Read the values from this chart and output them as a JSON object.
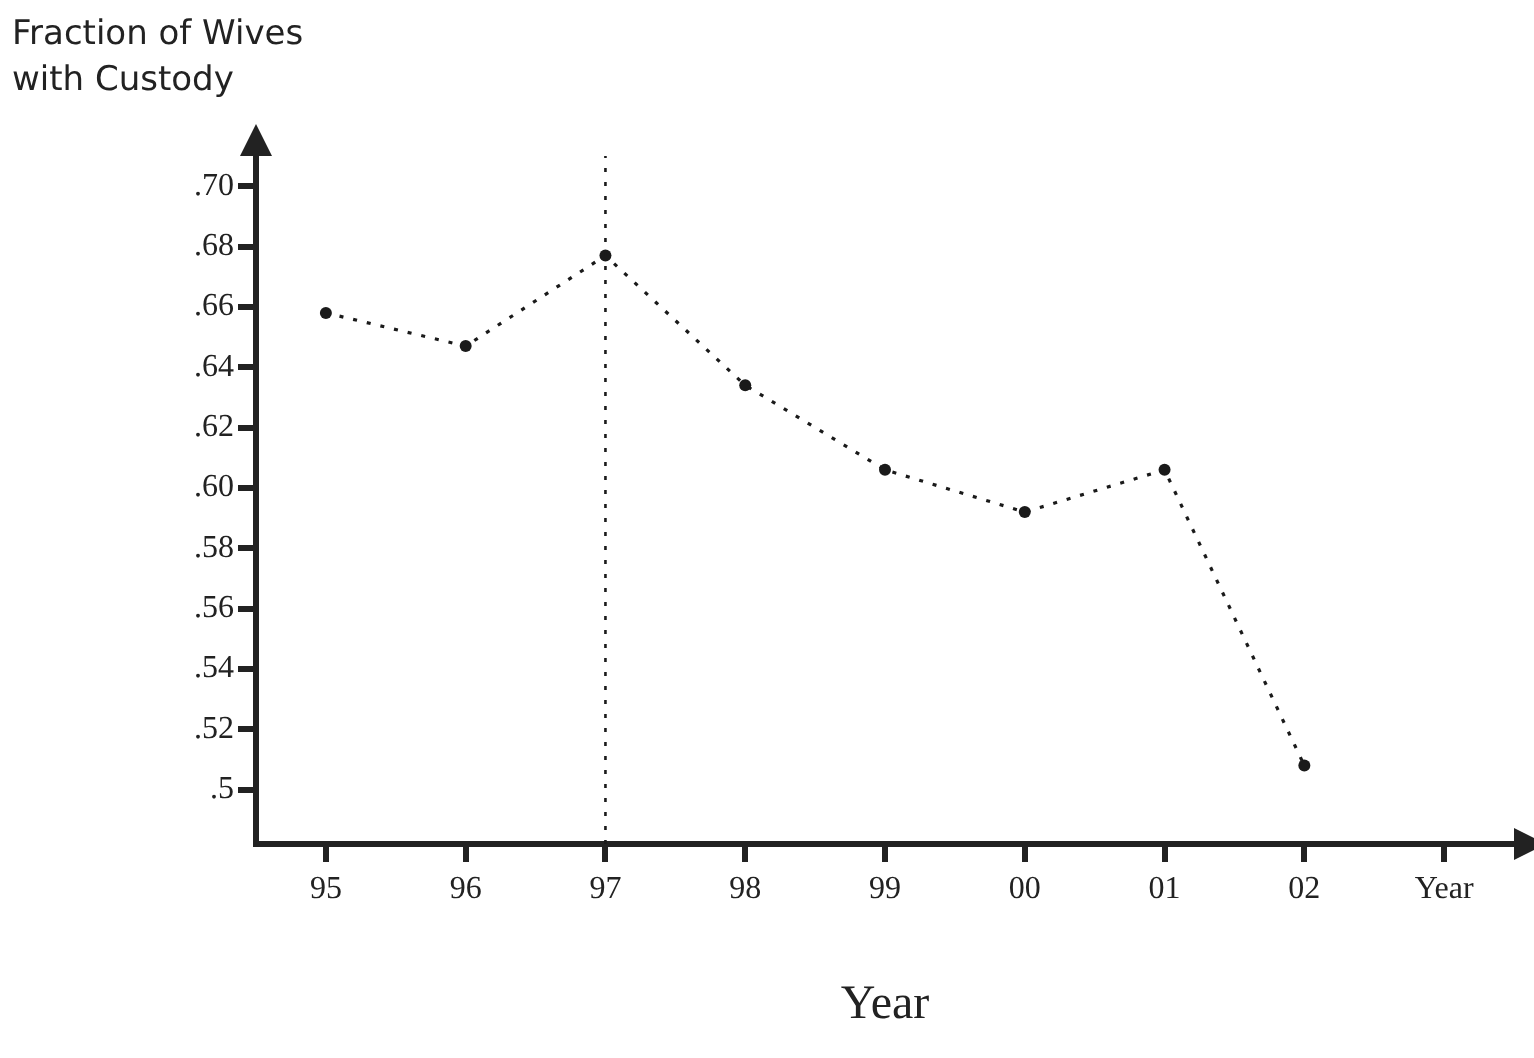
{
  "chart_data": {
    "type": "line",
    "ylabel": "Fraction of Wives\nwith Custody",
    "xlabel": "Year",
    "categories": [
      "95",
      "96",
      "97",
      "98",
      "99",
      "00",
      "01",
      "02",
      "Year"
    ],
    "series": [
      {
        "color": "#1a1a1a",
        "values": [
          0.658,
          0.647,
          0.677,
          0.634,
          0.606,
          0.592,
          0.606,
          0.508,
          null
        ]
      }
    ],
    "ylim": [
      0.482,
      0.71
    ],
    "yticks": [
      {
        "value": 0.5,
        "label": ".5"
      },
      {
        "value": 0.52,
        "label": ".52"
      },
      {
        "value": 0.54,
        "label": ".54"
      },
      {
        "value": 0.56,
        "label": ".56"
      },
      {
        "value": 0.58,
        "label": ".58"
      },
      {
        "value": 0.6,
        "label": ".60"
      },
      {
        "value": 0.62,
        "label": ".62"
      },
      {
        "value": 0.64,
        "label": ".64"
      },
      {
        "value": 0.66,
        "label": ".66"
      },
      {
        "value": 0.68,
        "label": ".68"
      },
      {
        "value": 0.7,
        "label": ".70"
      }
    ],
    "ref_lines": [
      {
        "axis": "x",
        "value": "97",
        "line_style": "dotted",
        "color": "#1a1a1a"
      }
    ],
    "marker": "circle",
    "line_style": "dotted"
  }
}
